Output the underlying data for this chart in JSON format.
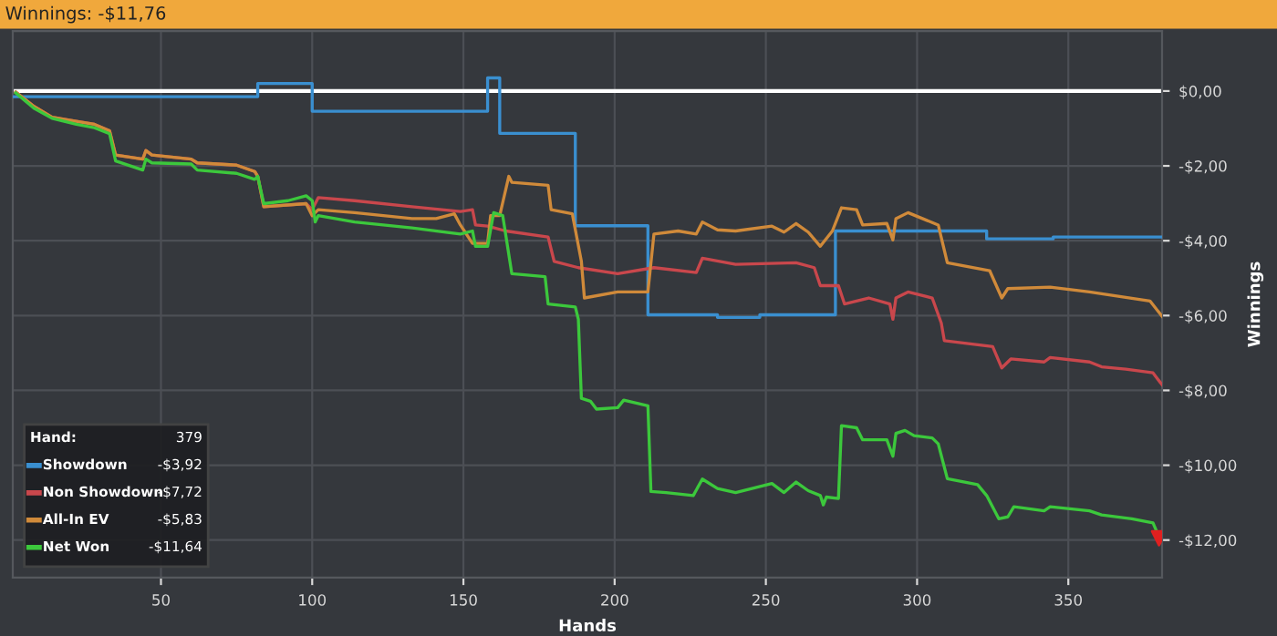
{
  "chart_data": {
    "type": "line",
    "title": "Winnings: -$11,76",
    "xlabel": "Hands",
    "ylabel": "Winnings",
    "xlim": [
      1,
      381
    ],
    "xticks": [
      50,
      100,
      150,
      200,
      250,
      300,
      350
    ],
    "ylim": [
      -13.0,
      1.6
    ],
    "yticks": [
      {
        "value": 0,
        "label": "$0,00"
      },
      {
        "value": -2,
        "label": "-$2,00"
      },
      {
        "value": -4,
        "label": "-$4,00"
      },
      {
        "value": -6,
        "label": "-$6,00"
      },
      {
        "value": -8,
        "label": "-$8,00"
      },
      {
        "value": -10,
        "label": "-$10,00"
      },
      {
        "value": -12,
        "label": "-$12,00"
      }
    ],
    "grid": true,
    "legend": "bottom left",
    "annotations": [
      "Hand:",
      "379",
      "-$3,92",
      "-$7,72",
      "-$5,83",
      "-$11,64"
    ],
    "ref_lines": [
      {
        "axis": "y",
        "value": 0,
        "color": "#ffffff"
      }
    ],
    "series": [
      {
        "name": "Showdown",
        "color": "#3a8fd0",
        "x": [
          1,
          82,
          82,
          100,
          100,
          158,
          158,
          162,
          162,
          187,
          187,
          211,
          211,
          234,
          234,
          248,
          248,
          273,
          273,
          323,
          323,
          345,
          345,
          381
        ],
        "values": [
          -0.15,
          -0.15,
          0.2,
          0.2,
          -0.54,
          -0.54,
          0.35,
          0.35,
          -1.13,
          -1.13,
          -3.6,
          -3.6,
          -5.98,
          -5.98,
          -6.05,
          -6.05,
          -5.98,
          -5.98,
          -3.74,
          -3.74,
          -3.95,
          -3.95,
          -3.9,
          -3.9
        ]
      },
      {
        "name": "Non Showdown",
        "color": "#c9474c",
        "x": [
          2,
          8,
          14,
          22,
          28,
          33,
          35,
          44,
          45,
          47,
          60,
          62,
          75,
          81,
          82,
          84,
          98,
          100,
          102,
          114,
          133,
          149,
          153,
          154,
          158,
          164,
          178,
          180,
          188,
          201,
          213,
          227,
          229,
          240,
          260,
          266,
          268,
          274,
          276,
          284,
          291,
          292,
          293,
          297,
          305,
          308,
          309,
          325,
          328,
          331,
          342,
          344,
          357,
          361,
          369,
          378,
          381
        ],
        "values": [
          -0.03,
          -0.41,
          -0.7,
          -0.81,
          -0.89,
          -1.06,
          -1.71,
          -1.82,
          -1.59,
          -1.71,
          -1.82,
          -1.92,
          -1.98,
          -2.15,
          -2.28,
          -3.09,
          -3.01,
          -3.17,
          -2.85,
          -2.93,
          -3.09,
          -3.22,
          -3.17,
          -3.58,
          -3.61,
          -3.74,
          -3.9,
          -4.55,
          -4.72,
          -4.88,
          -4.72,
          -4.85,
          -4.47,
          -4.63,
          -4.59,
          -4.72,
          -5.2,
          -5.2,
          -5.69,
          -5.53,
          -5.69,
          -6.1,
          -5.53,
          -5.37,
          -5.53,
          -6.2,
          -6.67,
          -6.83,
          -7.4,
          -7.16,
          -7.24,
          -7.12,
          -7.24,
          -7.37,
          -7.43,
          -7.53,
          -7.85
        ]
      },
      {
        "name": "All-In EV",
        "color": "#d08a3a",
        "x": [
          2,
          8,
          14,
          22,
          28,
          33,
          35,
          44,
          45,
          47,
          60,
          62,
          75,
          81,
          82,
          84,
          98,
          100,
          102,
          114,
          133,
          141,
          147,
          149,
          153,
          158,
          159,
          162,
          165,
          166,
          178,
          179,
          186,
          189,
          190,
          201,
          211,
          213,
          221,
          227,
          229,
          234,
          240,
          252,
          256,
          260,
          264,
          268,
          272,
          275,
          280,
          282,
          290,
          292,
          293,
          297,
          307,
          310,
          324,
          328,
          330,
          344,
          357,
          377,
          381
        ],
        "values": [
          -0.03,
          -0.41,
          -0.7,
          -0.81,
          -0.89,
          -1.06,
          -1.71,
          -1.82,
          -1.59,
          -1.71,
          -1.82,
          -1.92,
          -1.98,
          -2.15,
          -2.28,
          -3.09,
          -3.01,
          -3.33,
          -3.17,
          -3.25,
          -3.41,
          -3.41,
          -3.28,
          -3.58,
          -4.07,
          -4.07,
          -3.33,
          -3.33,
          -2.28,
          -2.44,
          -2.52,
          -3.17,
          -3.28,
          -4.55,
          -5.53,
          -5.37,
          -5.37,
          -3.82,
          -3.74,
          -3.82,
          -3.5,
          -3.71,
          -3.74,
          -3.61,
          -3.77,
          -3.54,
          -3.77,
          -4.15,
          -3.74,
          -3.12,
          -3.17,
          -3.58,
          -3.54,
          -3.98,
          -3.41,
          -3.25,
          -3.58,
          -4.59,
          -4.8,
          -5.53,
          -5.28,
          -5.24,
          -5.37,
          -5.61,
          -6.02
        ]
      },
      {
        "name": "Net Won",
        "color": "#3cc83c",
        "x": [
          2,
          8,
          14,
          22,
          28,
          33,
          35,
          44,
          45,
          47,
          60,
          62,
          75,
          81,
          82,
          84,
          92,
          98,
          100,
          101,
          102,
          114,
          133,
          149,
          153,
          154,
          158,
          160,
          163,
          166,
          177,
          178,
          187,
          188,
          189,
          192,
          194,
          201,
          203,
          211,
          212,
          217,
          226,
          229,
          234,
          240,
          252,
          256,
          260,
          264,
          268,
          269,
          270,
          274,
          275,
          280,
          282,
          290,
          292,
          293,
          296,
          299,
          305,
          307,
          310,
          320,
          323,
          327,
          330,
          332,
          342,
          344,
          357,
          361,
          371,
          378,
          380
        ],
        "values": [
          -0.05,
          -0.46,
          -0.73,
          -0.89,
          -0.98,
          -1.14,
          -1.87,
          -2.11,
          -1.82,
          -1.92,
          -1.95,
          -2.11,
          -2.2,
          -2.36,
          -2.28,
          -3.01,
          -2.93,
          -2.8,
          -2.93,
          -3.5,
          -3.33,
          -3.5,
          -3.66,
          -3.82,
          -3.74,
          -4.15,
          -4.15,
          -3.25,
          -3.33,
          -4.88,
          -4.96,
          -5.69,
          -5.77,
          -6.1,
          -8.21,
          -8.29,
          -8.5,
          -8.46,
          -8.26,
          -8.41,
          -10.7,
          -10.73,
          -10.81,
          -10.37,
          -10.62,
          -10.73,
          -10.49,
          -10.73,
          -10.45,
          -10.68,
          -10.81,
          -11.06,
          -10.85,
          -10.89,
          -8.94,
          -9.0,
          -9.32,
          -9.32,
          -9.76,
          -9.15,
          -9.07,
          -9.21,
          -9.27,
          -9.43,
          -10.36,
          -10.52,
          -10.81,
          -11.43,
          -11.38,
          -11.11,
          -11.22,
          -11.11,
          -11.22,
          -11.33,
          -11.43,
          -11.54,
          -11.92
        ]
      },
      {
        "type": "scatter",
        "color": "#e02020",
        "marker": "triangle",
        "x": [
          380
        ],
        "values": [
          -11.95
        ]
      }
    ]
  }
}
